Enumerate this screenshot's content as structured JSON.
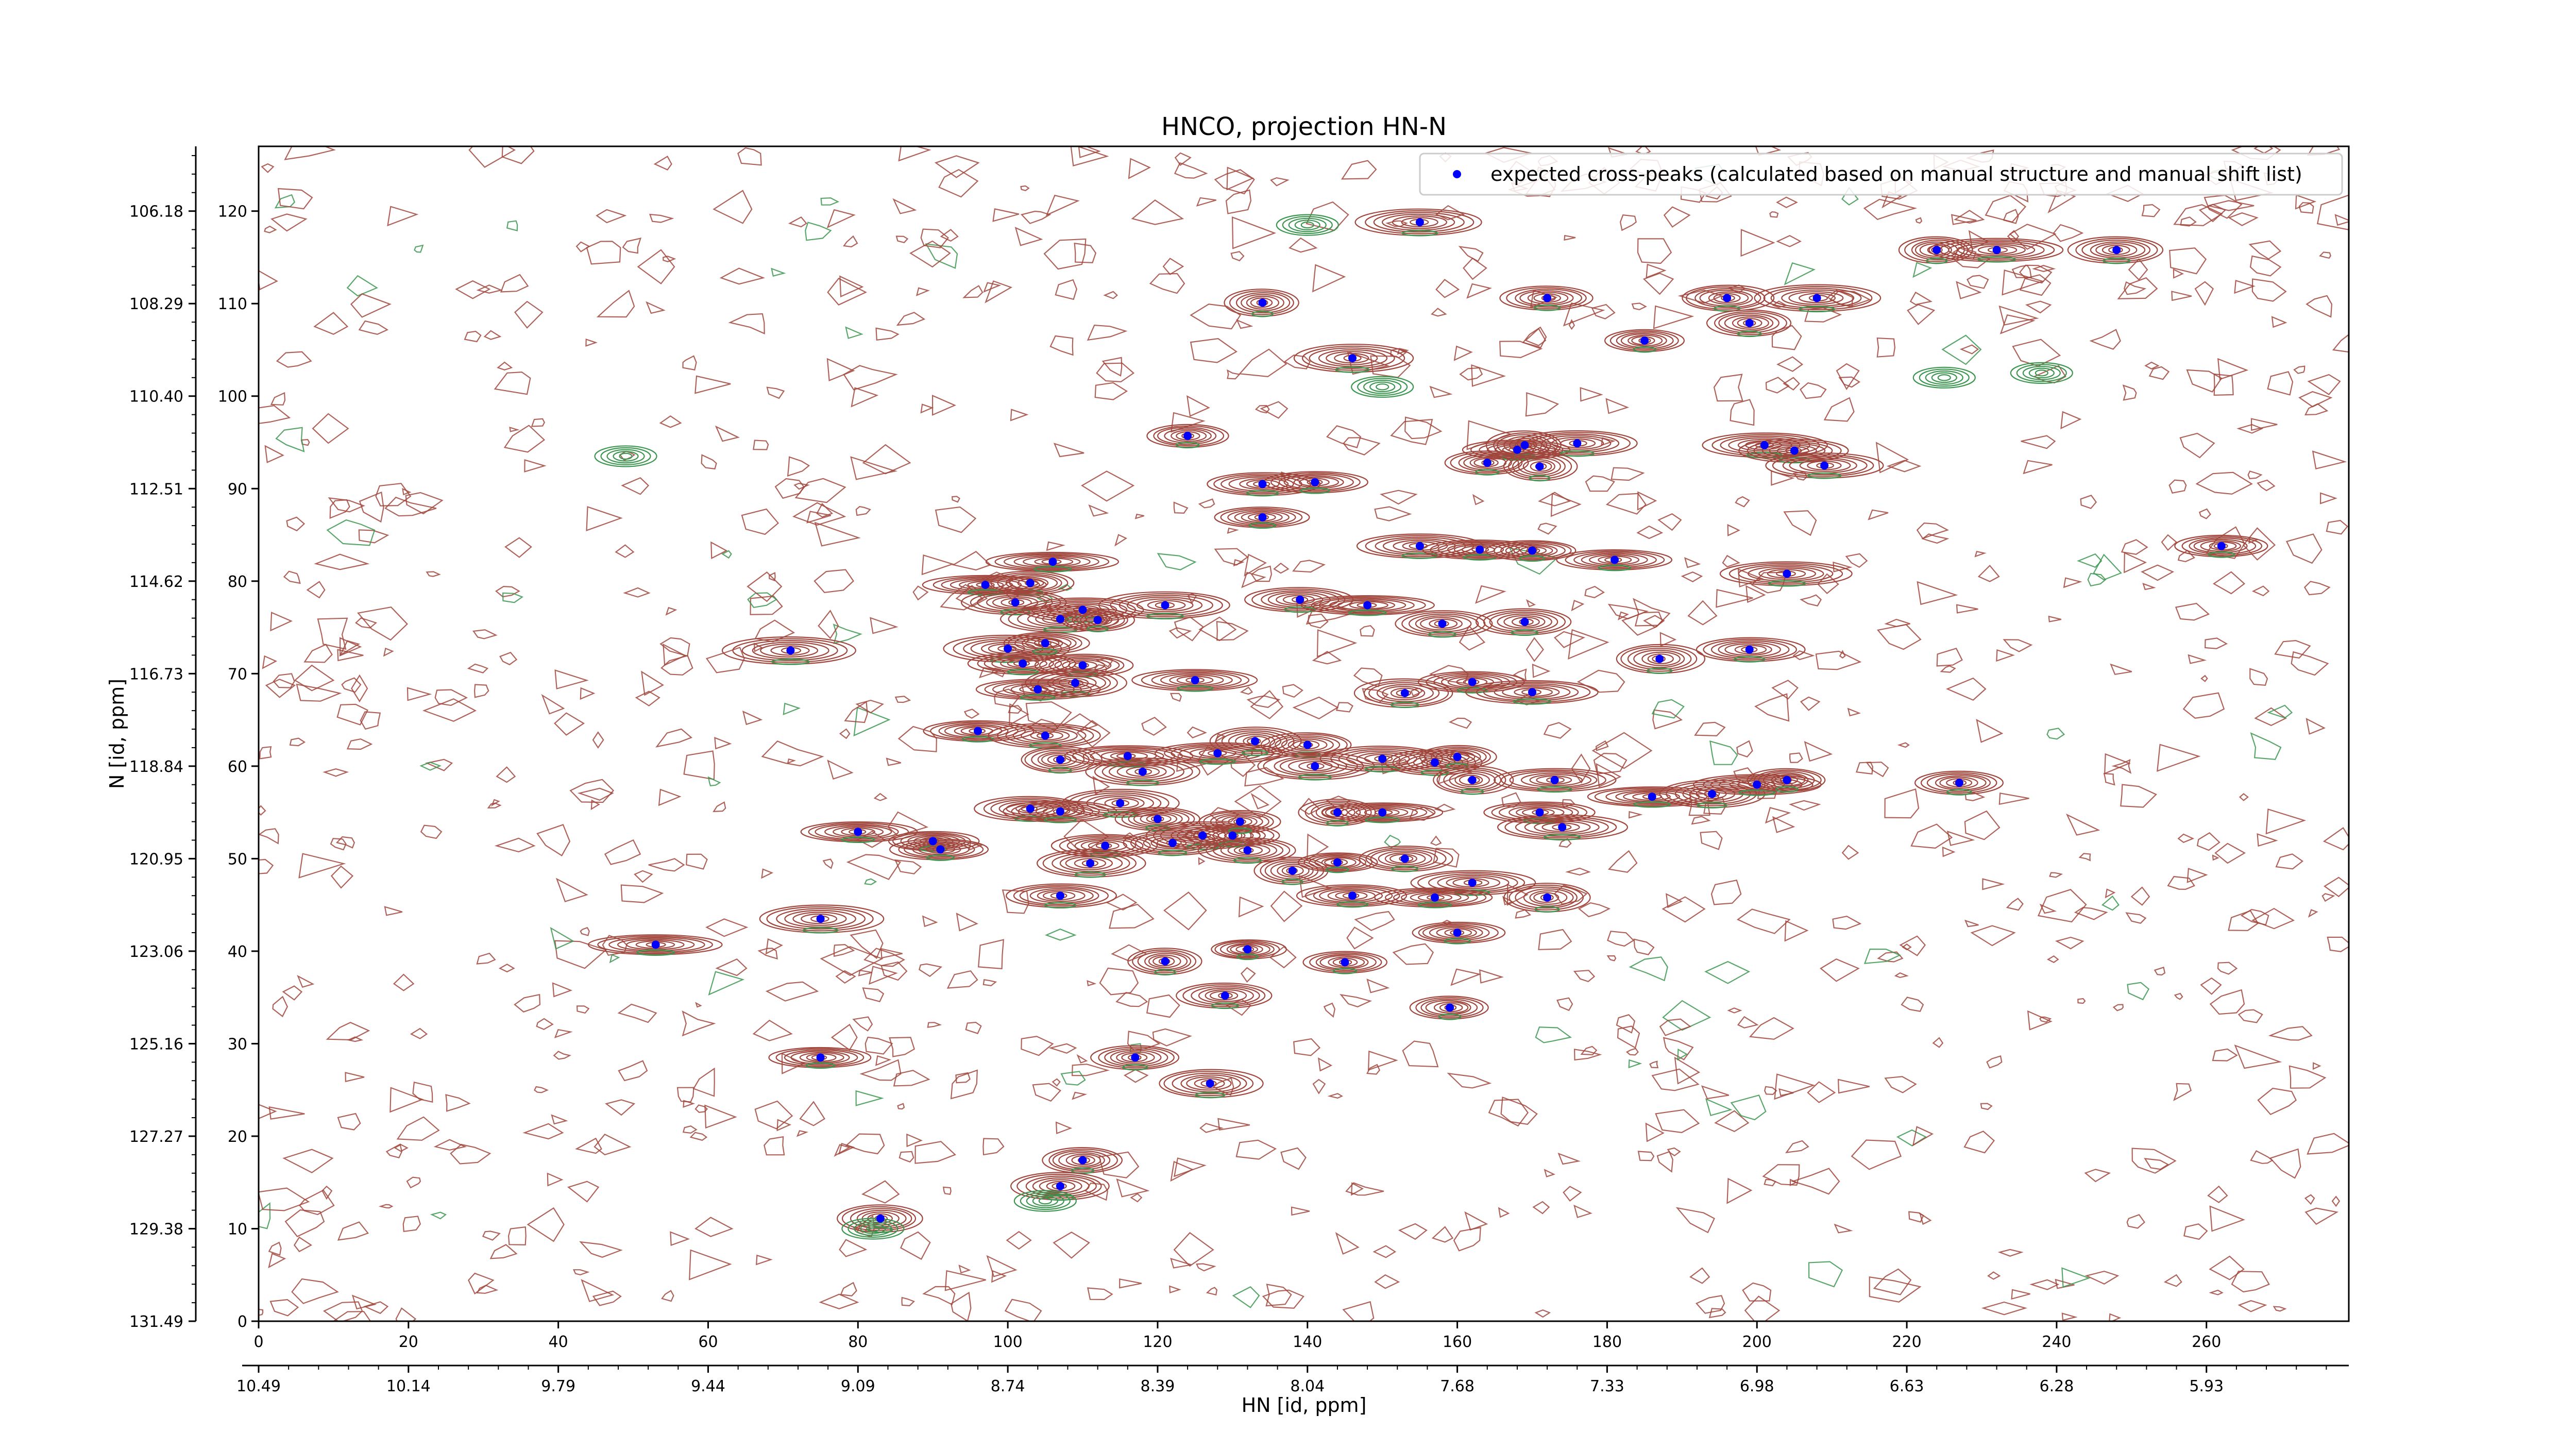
{
  "chart_data": {
    "type": "scatter",
    "title": "HNCO, projection HN-N",
    "xlabel": "HN [id, ppm]",
    "ylabel": "N [id, ppm]",
    "x_index_range": [
      0,
      279
    ],
    "y_index_range": [
      0,
      127
    ],
    "x_index_ticks": [
      0,
      20,
      40,
      60,
      80,
      100,
      120,
      140,
      160,
      180,
      200,
      220,
      240,
      260
    ],
    "y_index_ticks": [
      0,
      10,
      20,
      30,
      40,
      50,
      60,
      70,
      80,
      90,
      100,
      110,
      120
    ],
    "x_ppm_ticks": [
      "10.49",
      "10.14",
      "9.79",
      "9.44",
      "9.09",
      "8.74",
      "8.39",
      "8.04",
      "7.68",
      "7.33",
      "6.98",
      "6.63",
      "6.28",
      "5.93"
    ],
    "y_ppm_ticks": [
      "131.49",
      "129.38",
      "127.27",
      "125.16",
      "123.06",
      "120.95",
      "118.84",
      "116.73",
      "114.62",
      "112.51",
      "110.40",
      "108.29",
      "106.18"
    ],
    "contour_colors": {
      "positive": "#a0463c",
      "negative": "#3c9650"
    },
    "marker_color": "#0000ff",
    "legend": {
      "location": "upper-right",
      "label": "expected cross-peaks (calculated based on manual structure and manual shift list)"
    },
    "grid": false,
    "series": [
      {
        "name": "expected cross-peaks (calculated based on manual structure and manual shift list)",
        "points": [
          [
            155,
            118.8
          ],
          [
            224,
            115.8
          ],
          [
            232,
            115.8
          ],
          [
            248,
            115.8
          ],
          [
            134,
            110.1
          ],
          [
            172,
            110.6
          ],
          [
            196,
            110.6
          ],
          [
            208,
            110.6
          ],
          [
            199,
            107.9
          ],
          [
            185,
            106.0
          ],
          [
            146,
            104.1
          ],
          [
            124,
            95.7
          ],
          [
            168,
            94.2
          ],
          [
            169,
            94.7
          ],
          [
            176,
            94.9
          ],
          [
            164,
            92.8
          ],
          [
            171,
            92.4
          ],
          [
            201,
            94.7
          ],
          [
            205,
            94.1
          ],
          [
            209,
            92.5
          ],
          [
            134,
            90.5
          ],
          [
            141,
            90.7
          ],
          [
            134,
            86.9
          ],
          [
            155,
            83.8
          ],
          [
            163,
            83.4
          ],
          [
            170,
            83.3
          ],
          [
            181,
            82.3
          ],
          [
            262,
            83.8
          ],
          [
            204,
            80.8
          ],
          [
            103,
            79.8
          ],
          [
            106,
            82.1
          ],
          [
            97,
            79.6
          ],
          [
            101,
            77.7
          ],
          [
            110,
            76.9
          ],
          [
            121,
            77.4
          ],
          [
            139,
            78.0
          ],
          [
            148,
            77.4
          ],
          [
            107,
            75.9
          ],
          [
            112,
            75.8
          ],
          [
            158,
            75.4
          ],
          [
            169,
            75.6
          ],
          [
            71,
            72.5
          ],
          [
            100,
            72.7
          ],
          [
            102,
            71.1
          ],
          [
            105,
            73.3
          ],
          [
            110,
            70.9
          ],
          [
            109,
            69.0
          ],
          [
            104,
            68.3
          ],
          [
            125,
            69.3
          ],
          [
            162,
            69.1
          ],
          [
            153,
            67.9
          ],
          [
            170,
            68.0
          ],
          [
            187,
            71.6
          ],
          [
            199,
            72.6
          ],
          [
            96,
            63.8
          ],
          [
            105,
            63.3
          ],
          [
            107,
            60.7
          ],
          [
            116,
            61.1
          ],
          [
            118,
            59.4
          ],
          [
            128,
            61.4
          ],
          [
            133,
            62.7
          ],
          [
            140,
            62.3
          ],
          [
            141,
            60.0
          ],
          [
            150,
            60.8
          ],
          [
            157,
            60.4
          ],
          [
            160,
            61.0
          ],
          [
            162,
            58.5
          ],
          [
            173,
            58.5
          ],
          [
            186,
            56.7
          ],
          [
            194,
            57.0
          ],
          [
            200,
            58.0
          ],
          [
            204,
            58.5
          ],
          [
            227,
            58.2
          ],
          [
            103,
            55.4
          ],
          [
            107,
            55.1
          ],
          [
            115,
            56.0
          ],
          [
            120,
            54.3
          ],
          [
            126,
            52.5
          ],
          [
            130,
            52.5
          ],
          [
            131,
            54.0
          ],
          [
            144,
            55.0
          ],
          [
            150,
            55.0
          ],
          [
            171,
            55.0
          ],
          [
            174,
            53.4
          ],
          [
            80,
            52.9
          ],
          [
            90,
            51.9
          ],
          [
            91,
            51.0
          ],
          [
            113,
            51.4
          ],
          [
            122,
            51.7
          ],
          [
            132,
            50.9
          ],
          [
            138,
            48.7
          ],
          [
            144,
            49.6
          ],
          [
            153,
            50.0
          ],
          [
            162,
            47.4
          ],
          [
            111,
            49.5
          ],
          [
            107,
            46.0
          ],
          [
            146,
            46.0
          ],
          [
            157,
            45.8
          ],
          [
            172,
            45.8
          ],
          [
            75,
            43.5
          ],
          [
            53,
            40.7
          ],
          [
            160,
            42.0
          ],
          [
            132,
            40.2
          ],
          [
            145,
            38.8
          ],
          [
            121,
            38.9
          ],
          [
            129,
            35.2
          ],
          [
            159,
            33.9
          ],
          [
            75,
            28.5
          ],
          [
            117,
            28.5
          ],
          [
            127,
            25.7
          ],
          [
            110,
            17.4
          ],
          [
            107,
            14.6
          ],
          [
            83,
            11.1
          ]
        ]
      }
    ]
  }
}
